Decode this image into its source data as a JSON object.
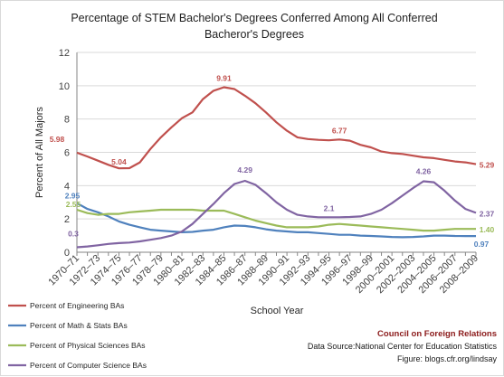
{
  "chart_data": {
    "type": "line",
    "title": "Percentage of STEM Bachelor's  Degrees Conferred Among All Conferred Bacheror's Degrees",
    "title_lines": [
      "Percentage of STEM Bachelor's  Degrees Conferred Among All Conferred",
      "Bacheror's Degrees"
    ],
    "xlabel": "School Year",
    "ylabel": "Percent of All Majors",
    "ylim": [
      0,
      12
    ],
    "yticks": [
      0,
      2,
      4,
      6,
      8,
      10,
      12
    ],
    "grid": "horizontal",
    "legend_position": "bottom-left",
    "x": [
      "1970-71",
      "1971-72",
      "1972-73",
      "1973-74",
      "1974-75",
      "1975-76",
      "1976-77",
      "1977-78",
      "1978-79",
      "1979-80",
      "1980-81",
      "1981-82",
      "1982-83",
      "1983-84",
      "1984-85",
      "1985-86",
      "1986-87",
      "1987-88",
      "1988-89",
      "1989-90",
      "1990-91",
      "1991-92",
      "1992-93",
      "1993-94",
      "1994-95",
      "1995-96",
      "1996-97",
      "1997-98",
      "1998-99",
      "1999-00",
      "2000-01",
      "2001-02",
      "2002-03",
      "2003-04",
      "2004-05",
      "2005-06",
      "2006-07",
      "2007-08",
      "2008-09"
    ],
    "x_tick_labels": [
      "1970–71",
      "1972–73",
      "1974–75",
      "1976–77",
      "1978–79",
      "1980–81",
      "1982–83",
      "1984–85",
      "1986–87",
      "1988–89",
      "1990–91",
      "1992–93",
      "1994–95",
      "1996–97",
      "1998–99",
      "2000–2001",
      "2002–2003",
      "2004–2005",
      "2006–2007",
      "2008–2009"
    ],
    "series": [
      {
        "name": "Percent of Engineering BAs",
        "color": "#c0504d",
        "values": [
          5.98,
          5.75,
          5.5,
          5.25,
          5.04,
          5.05,
          5.4,
          6.2,
          6.9,
          7.5,
          8.05,
          8.4,
          9.2,
          9.7,
          9.91,
          9.8,
          9.4,
          8.95,
          8.4,
          7.8,
          7.3,
          6.9,
          6.8,
          6.75,
          6.72,
          6.77,
          6.7,
          6.45,
          6.3,
          6.05,
          5.95,
          5.9,
          5.8,
          5.7,
          5.65,
          5.55,
          5.45,
          5.4,
          5.29
        ],
        "labels": [
          {
            "index": 0,
            "text": "5.98"
          },
          {
            "index": 4,
            "text": "5.04"
          },
          {
            "index": 14,
            "text": "9.91"
          },
          {
            "index": 25,
            "text": "6.77"
          },
          {
            "index": 38,
            "text": "5.29"
          }
        ]
      },
      {
        "name": "Percent of Math & Stats BAs",
        "color": "#4f81bd",
        "values": [
          2.95,
          2.6,
          2.4,
          2.15,
          1.85,
          1.65,
          1.5,
          1.35,
          1.3,
          1.25,
          1.2,
          1.22,
          1.3,
          1.35,
          1.5,
          1.6,
          1.58,
          1.5,
          1.38,
          1.3,
          1.25,
          1.2,
          1.2,
          1.15,
          1.1,
          1.05,
          1.05,
          1.0,
          0.98,
          0.95,
          0.92,
          0.9,
          0.92,
          0.95,
          1.0,
          1.0,
          0.98,
          0.97,
          0.97
        ],
        "labels": [
          {
            "index": 0,
            "text": "2.95"
          },
          {
            "index": 38,
            "text": "0.97"
          }
        ]
      },
      {
        "name": "Percent of Physical Sciences BAs",
        "color": "#9bbb59",
        "values": [
          2.55,
          2.35,
          2.25,
          2.3,
          2.3,
          2.4,
          2.45,
          2.5,
          2.55,
          2.55,
          2.55,
          2.55,
          2.5,
          2.5,
          2.5,
          2.3,
          2.1,
          1.9,
          1.75,
          1.6,
          1.5,
          1.5,
          1.5,
          1.55,
          1.65,
          1.7,
          1.65,
          1.6,
          1.55,
          1.5,
          1.45,
          1.4,
          1.35,
          1.3,
          1.3,
          1.35,
          1.4,
          1.4,
          1.4
        ],
        "labels": [
          {
            "index": 0,
            "text": "2.55"
          },
          {
            "index": 38,
            "text": "1.40"
          }
        ]
      },
      {
        "name": "Percent of Computer Science BAs",
        "color": "#8064a2",
        "values": [
          0.3,
          0.35,
          0.42,
          0.5,
          0.55,
          0.58,
          0.65,
          0.75,
          0.85,
          1.0,
          1.25,
          1.7,
          2.3,
          2.9,
          3.55,
          4.1,
          4.29,
          4.05,
          3.55,
          3.0,
          2.55,
          2.25,
          2.15,
          2.1,
          2.1,
          2.1,
          2.12,
          2.15,
          2.3,
          2.55,
          2.95,
          3.4,
          3.85,
          4.26,
          4.2,
          3.7,
          3.1,
          2.6,
          2.37
        ],
        "labels": [
          {
            "index": 0,
            "text": "0.3"
          },
          {
            "index": 16,
            "text": "4.29"
          },
          {
            "index": 24,
            "text": "2.1"
          },
          {
            "index": 33,
            "text": "4.26"
          },
          {
            "index": 38,
            "text": "2.37"
          }
        ]
      }
    ]
  },
  "credits": {
    "organization": "Council on Foreign Relations",
    "source": "Data Source:National Center for Education Statistics",
    "figure": "Figure: blogs.cfr.org/lindsay"
  }
}
